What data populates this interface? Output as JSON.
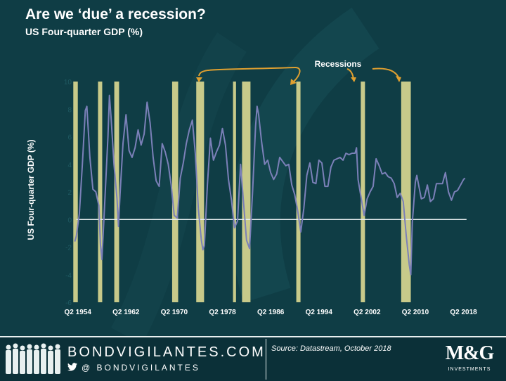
{
  "header": {
    "title": "Are we ‘due’ a recession?",
    "subtitle": "US Four-quarter GDP (%)"
  },
  "chart_data": {
    "type": "line",
    "title": "Are we ‘due’ a recession?",
    "subtitle": "US Four-quarter GDP (%)",
    "ylabel": "US Four-quarter GDP (%)",
    "xlabel": "",
    "ylim": [
      -6,
      10
    ],
    "yticks": [
      10,
      8,
      6,
      4,
      2,
      0,
      -2,
      -4,
      -6
    ],
    "xlim": [
      1953.0,
      2019.0
    ],
    "xticks": [
      {
        "label": "Q2 1954",
        "x": 1954.25
      },
      {
        "label": "Q2 1962",
        "x": 1962.25
      },
      {
        "label": "Q2 1970",
        "x": 1970.25
      },
      {
        "label": "Q2 1978",
        "x": 1978.25
      },
      {
        "label": "Q2 1986",
        "x": 1986.25
      },
      {
        "label": "Q2 1994",
        "x": 1994.25
      },
      {
        "label": "Q2 2002",
        "x": 2002.25
      },
      {
        "label": "Q2 2010",
        "x": 2010.25
      },
      {
        "label": "Q2 2018",
        "x": 2018.25
      }
    ],
    "annotation": "Recessions",
    "recessions": [
      [
        1953.5,
        1954.25
      ],
      [
        1957.6,
        1958.3
      ],
      [
        1960.3,
        1961.1
      ],
      [
        1969.9,
        1970.9
      ],
      [
        1973.9,
        1975.2
      ],
      [
        1980.0,
        1980.5
      ],
      [
        1981.5,
        1982.9
      ],
      [
        1990.5,
        1991.2
      ],
      [
        2001.2,
        2001.9
      ],
      [
        2007.9,
        2009.5
      ]
    ],
    "series": [
      {
        "values": [
          [
            1953.75,
            -1.6
          ],
          [
            1954.0,
            -1.2
          ],
          [
            1954.5,
            0.4
          ],
          [
            1955.0,
            4.0
          ],
          [
            1955.5,
            7.9
          ],
          [
            1955.75,
            8.2
          ],
          [
            1956.25,
            4.5
          ],
          [
            1956.75,
            2.2
          ],
          [
            1957.25,
            2.0
          ],
          [
            1957.75,
            1.0
          ],
          [
            1958.0,
            -1.8
          ],
          [
            1958.25,
            -2.9
          ],
          [
            1958.75,
            1.5
          ],
          [
            1959.25,
            6.0
          ],
          [
            1959.5,
            9.0
          ],
          [
            1959.75,
            7.5
          ],
          [
            1960.25,
            4.0
          ],
          [
            1960.75,
            1.5
          ],
          [
            1961.0,
            -0.5
          ],
          [
            1961.25,
            1.8
          ],
          [
            1961.75,
            5.5
          ],
          [
            1962.25,
            7.6
          ],
          [
            1962.75,
            5.0
          ],
          [
            1963.25,
            4.5
          ],
          [
            1963.75,
            5.2
          ],
          [
            1964.25,
            6.5
          ],
          [
            1964.75,
            5.4
          ],
          [
            1965.25,
            6.2
          ],
          [
            1965.75,
            8.5
          ],
          [
            1966.25,
            7.0
          ],
          [
            1966.75,
            4.5
          ],
          [
            1967.25,
            2.8
          ],
          [
            1967.75,
            2.4
          ],
          [
            1968.25,
            5.5
          ],
          [
            1968.75,
            4.9
          ],
          [
            1969.25,
            4.0
          ],
          [
            1969.75,
            2.5
          ],
          [
            1970.25,
            0.3
          ],
          [
            1970.75,
            0.1
          ],
          [
            1971.25,
            3.0
          ],
          [
            1971.75,
            4.1
          ],
          [
            1972.25,
            5.5
          ],
          [
            1972.75,
            6.5
          ],
          [
            1973.25,
            7.2
          ],
          [
            1973.75,
            4.8
          ],
          [
            1974.25,
            0.8
          ],
          [
            1974.75,
            -1.5
          ],
          [
            1975.0,
            -2.2
          ],
          [
            1975.25,
            -1.9
          ],
          [
            1975.75,
            2.5
          ],
          [
            1976.25,
            5.9
          ],
          [
            1976.75,
            4.3
          ],
          [
            1977.25,
            4.9
          ],
          [
            1977.75,
            5.4
          ],
          [
            1978.25,
            6.6
          ],
          [
            1978.75,
            5.4
          ],
          [
            1979.25,
            2.9
          ],
          [
            1979.75,
            1.4
          ],
          [
            1980.25,
            -0.6
          ],
          [
            1980.75,
            -0.1
          ],
          [
            1981.25,
            4.0
          ],
          [
            1981.75,
            1.2
          ],
          [
            1982.25,
            -1.5
          ],
          [
            1982.75,
            -2.1
          ],
          [
            1983.25,
            2.0
          ],
          [
            1983.75,
            6.8
          ],
          [
            1984.0,
            8.2
          ],
          [
            1984.25,
            7.6
          ],
          [
            1984.75,
            5.6
          ],
          [
            1985.25,
            4.0
          ],
          [
            1985.75,
            4.3
          ],
          [
            1986.25,
            3.4
          ],
          [
            1986.75,
            2.9
          ],
          [
            1987.25,
            3.3
          ],
          [
            1987.75,
            4.5
          ],
          [
            1988.25,
            4.2
          ],
          [
            1988.75,
            3.9
          ],
          [
            1989.25,
            4.0
          ],
          [
            1989.75,
            2.5
          ],
          [
            1990.25,
            1.8
          ],
          [
            1990.75,
            0.6
          ],
          [
            1991.25,
            -0.9
          ],
          [
            1991.75,
            0.8
          ],
          [
            1992.25,
            3.2
          ],
          [
            1992.75,
            4.1
          ],
          [
            1993.25,
            2.7
          ],
          [
            1993.75,
            2.6
          ],
          [
            1994.25,
            4.3
          ],
          [
            1994.75,
            4.1
          ],
          [
            1995.25,
            2.4
          ],
          [
            1995.75,
            2.4
          ],
          [
            1996.25,
            3.8
          ],
          [
            1996.75,
            4.3
          ],
          [
            1997.25,
            4.4
          ],
          [
            1997.75,
            4.5
          ],
          [
            1998.25,
            4.3
          ],
          [
            1998.75,
            4.8
          ],
          [
            1999.25,
            4.7
          ],
          [
            1999.75,
            4.8
          ],
          [
            2000.25,
            4.8
          ],
          [
            2000.5,
            5.2
          ],
          [
            2000.75,
            2.9
          ],
          [
            2001.25,
            1.6
          ],
          [
            2001.75,
            0.3
          ],
          [
            2002.25,
            1.5
          ],
          [
            2002.75,
            2.0
          ],
          [
            2003.25,
            2.4
          ],
          [
            2003.75,
            4.4
          ],
          [
            2004.25,
            3.9
          ],
          [
            2004.75,
            3.3
          ],
          [
            2005.25,
            3.4
          ],
          [
            2005.75,
            3.1
          ],
          [
            2006.25,
            3.0
          ],
          [
            2006.75,
            2.6
          ],
          [
            2007.25,
            1.6
          ],
          [
            2007.75,
            1.9
          ],
          [
            2008.25,
            1.3
          ],
          [
            2008.75,
            -1.2
          ],
          [
            2009.25,
            -3.3
          ],
          [
            2009.5,
            -4.0
          ],
          [
            2009.75,
            -0.2
          ],
          [
            2010.25,
            2.7
          ],
          [
            2010.5,
            3.2
          ],
          [
            2010.75,
            2.6
          ],
          [
            2011.25,
            1.5
          ],
          [
            2011.75,
            1.6
          ],
          [
            2012.25,
            2.5
          ],
          [
            2012.75,
            1.3
          ],
          [
            2013.25,
            1.5
          ],
          [
            2013.75,
            2.6
          ],
          [
            2014.25,
            2.6
          ],
          [
            2014.75,
            2.6
          ],
          [
            2015.25,
            3.4
          ],
          [
            2015.75,
            2.0
          ],
          [
            2016.25,
            1.4
          ],
          [
            2016.75,
            2.0
          ],
          [
            2017.25,
            2.1
          ],
          [
            2017.75,
            2.5
          ],
          [
            2018.25,
            2.9
          ],
          [
            2018.5,
            3.0
          ]
        ]
      }
    ]
  },
  "footer": {
    "brand": "BONDVIGILANTES.COM",
    "handle": "@ BONDVIGILANTES",
    "source": "Source: Datastream, October 2018",
    "logo_text": "M&G",
    "logo_sub": "INVESTMENTS"
  },
  "colors": {
    "background": "#0f3d45",
    "recession_band": "#c8ca8a",
    "gdp_line": "#7b80b8",
    "arrow": "#e0a030",
    "footer": "#0b3038"
  },
  "icons": [
    "twitter-icon",
    "people-silhouette-icon",
    "mg-logo-icon"
  ]
}
